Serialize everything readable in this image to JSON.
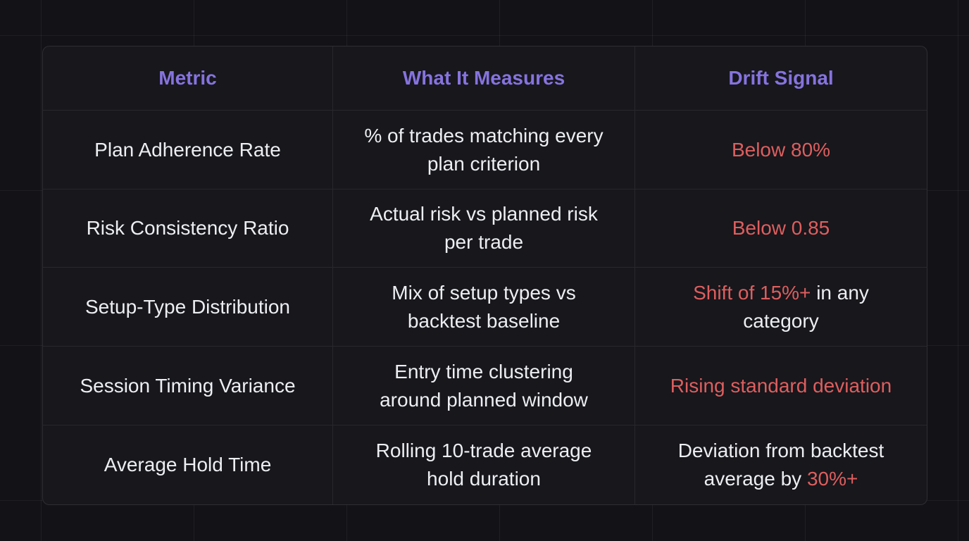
{
  "table": {
    "headers": [
      "Metric",
      "What It Measures",
      "Drift Signal"
    ],
    "rows": [
      {
        "metric": "Plan Adherence Rate",
        "measures": "% of trades matching every plan criterion",
        "signal": {
          "pre": "",
          "hot": "Below 80%",
          "post": ""
        }
      },
      {
        "metric": "Risk Consistency Ratio",
        "measures": "Actual risk vs planned risk per trade",
        "signal": {
          "pre": "",
          "hot": "Below 0.85",
          "post": ""
        }
      },
      {
        "metric": "Setup-Type Distribution",
        "measures": "Mix of setup types vs backtest baseline",
        "signal": {
          "pre": "",
          "hot": "Shift of 15%+",
          "post": " in any category"
        }
      },
      {
        "metric": "Session Timing Variance",
        "measures": "Entry time clustering around planned window",
        "signal": {
          "pre": "",
          "hot": "Rising standard deviation",
          "post": ""
        }
      },
      {
        "metric": "Average Hold Time",
        "measures": "Rolling 10-trade average hold duration",
        "signal": {
          "pre": "Deviation from backtest average by ",
          "hot": "30%+",
          "post": ""
        }
      }
    ],
    "colors": {
      "header_accent": "#8673de",
      "alert": "#de5e5e",
      "body_text": "#eceef2",
      "card_background": "#17171c",
      "page_background": "#121217"
    }
  }
}
